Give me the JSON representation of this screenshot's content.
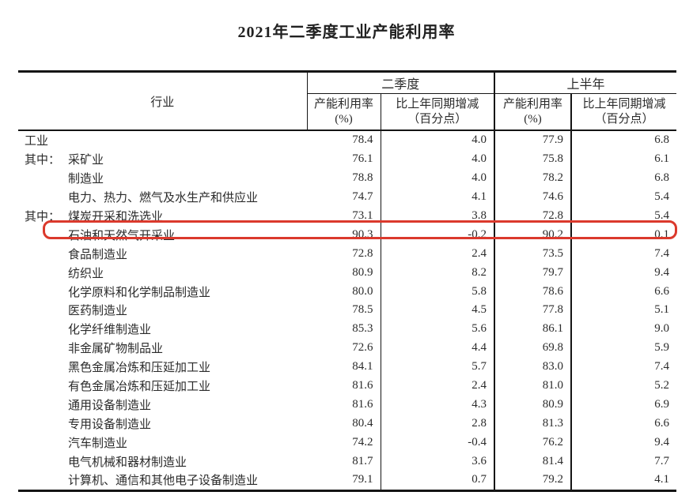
{
  "title": "2021年二季度工业产能利用率",
  "annotation": {
    "highlight_color": "#db392c",
    "highlighted_row": "石油和天然气开采业"
  },
  "table": {
    "industry_header": "行业",
    "group_q2": "二季度",
    "group_h1": "上半年",
    "sub_columns": {
      "rate_l1": "产能利用率",
      "rate_l2": "(%)",
      "change_l1": "比上年同期增减",
      "change_l2": "（百分点）"
    },
    "rows": [
      {
        "prefix": "",
        "indent": false,
        "highlight": false,
        "name": "工业",
        "q2_rate": "78.4",
        "q2_change": "4.0",
        "h1_rate": "77.9",
        "h1_change": "6.8"
      },
      {
        "prefix": "其中：",
        "indent": false,
        "highlight": false,
        "name": "采矿业",
        "q2_rate": "76.1",
        "q2_change": "4.0",
        "h1_rate": "75.8",
        "h1_change": "6.1"
      },
      {
        "prefix": "",
        "indent": true,
        "highlight": false,
        "name": "制造业",
        "q2_rate": "78.8",
        "q2_change": "4.0",
        "h1_rate": "78.2",
        "h1_change": "6.8"
      },
      {
        "prefix": "",
        "indent": true,
        "highlight": false,
        "name": "电力、热力、燃气及水生产和供应业",
        "q2_rate": "74.7",
        "q2_change": "4.1",
        "h1_rate": "74.6",
        "h1_change": "5.4"
      },
      {
        "prefix": "其中：",
        "indent": false,
        "highlight": false,
        "name": "煤炭开采和洗选业",
        "q2_rate": "73.1",
        "q2_change": "3.8",
        "h1_rate": "72.8",
        "h1_change": "5.4"
      },
      {
        "prefix": "",
        "indent": true,
        "highlight": true,
        "name": "石油和天然气开采业",
        "q2_rate": "90.3",
        "q2_change": "-0.2",
        "h1_rate": "90.2",
        "h1_change": "0.1"
      },
      {
        "prefix": "",
        "indent": true,
        "highlight": false,
        "name": "食品制造业",
        "q2_rate": "72.8",
        "q2_change": "2.4",
        "h1_rate": "73.5",
        "h1_change": "7.4"
      },
      {
        "prefix": "",
        "indent": true,
        "highlight": false,
        "name": "纺织业",
        "q2_rate": "80.9",
        "q2_change": "8.2",
        "h1_rate": "79.7",
        "h1_change": "9.4"
      },
      {
        "prefix": "",
        "indent": true,
        "highlight": false,
        "name": "化学原料和化学制品制造业",
        "q2_rate": "80.0",
        "q2_change": "5.8",
        "h1_rate": "78.6",
        "h1_change": "6.6"
      },
      {
        "prefix": "",
        "indent": true,
        "highlight": false,
        "name": "医药制造业",
        "q2_rate": "78.5",
        "q2_change": "4.5",
        "h1_rate": "77.8",
        "h1_change": "5.1"
      },
      {
        "prefix": "",
        "indent": true,
        "highlight": false,
        "name": "化学纤维制造业",
        "q2_rate": "85.3",
        "q2_change": "5.6",
        "h1_rate": "86.1",
        "h1_change": "9.0"
      },
      {
        "prefix": "",
        "indent": true,
        "highlight": false,
        "name": "非金属矿物制品业",
        "q2_rate": "72.6",
        "q2_change": "4.4",
        "h1_rate": "69.8",
        "h1_change": "5.9"
      },
      {
        "prefix": "",
        "indent": true,
        "highlight": false,
        "name": "黑色金属冶炼和压延加工业",
        "q2_rate": "84.1",
        "q2_change": "5.7",
        "h1_rate": "83.0",
        "h1_change": "7.4"
      },
      {
        "prefix": "",
        "indent": true,
        "highlight": false,
        "name": "有色金属冶炼和压延加工业",
        "q2_rate": "81.6",
        "q2_change": "2.4",
        "h1_rate": "81.0",
        "h1_change": "5.2"
      },
      {
        "prefix": "",
        "indent": true,
        "highlight": false,
        "name": "通用设备制造业",
        "q2_rate": "81.6",
        "q2_change": "4.3",
        "h1_rate": "80.9",
        "h1_change": "6.9"
      },
      {
        "prefix": "",
        "indent": true,
        "highlight": false,
        "name": "专用设备制造业",
        "q2_rate": "80.4",
        "q2_change": "2.8",
        "h1_rate": "81.3",
        "h1_change": "6.6"
      },
      {
        "prefix": "",
        "indent": true,
        "highlight": false,
        "name": "汽车制造业",
        "q2_rate": "74.2",
        "q2_change": "-0.4",
        "h1_rate": "76.2",
        "h1_change": "9.4"
      },
      {
        "prefix": "",
        "indent": true,
        "highlight": false,
        "name": "电气机械和器材制造业",
        "q2_rate": "81.7",
        "q2_change": "3.6",
        "h1_rate": "81.4",
        "h1_change": "7.7"
      },
      {
        "prefix": "",
        "indent": true,
        "highlight": false,
        "name": "计算机、通信和其他电子设备制造业",
        "q2_rate": "79.1",
        "q2_change": "0.7",
        "h1_rate": "79.2",
        "h1_change": "4.1"
      }
    ]
  }
}
